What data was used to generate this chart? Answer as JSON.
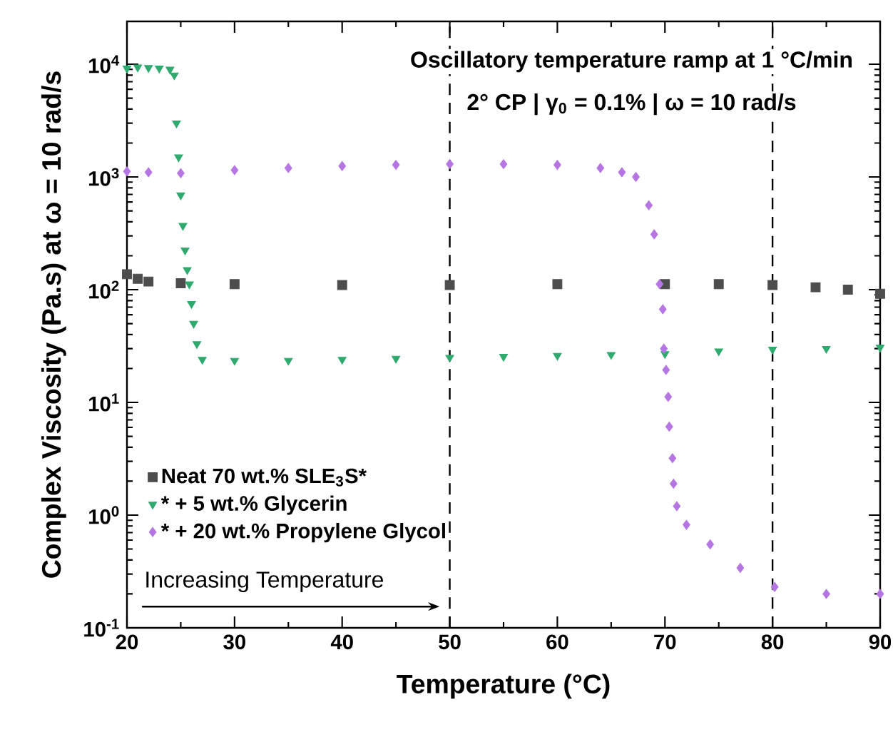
{
  "chart_data": {
    "type": "scatter",
    "xlabel": "Temperature (°C)",
    "ylabel": "Complex Viscosity (Pa.s) at ω = 10 rad/s",
    "xlim": [
      20,
      90
    ],
    "xticks": [
      20,
      30,
      40,
      50,
      60,
      70,
      80,
      90
    ],
    "ylim": [
      0.1,
      24000
    ],
    "log": "y",
    "yticks": [
      {
        "value": 0.1,
        "label": "10$^{-1}$"
      },
      {
        "value": 1,
        "label": "10$^{0}$"
      },
      {
        "value": 10,
        "label": "10$^{1}$"
      },
      {
        "value": 100,
        "label": "10$^{2}$"
      },
      {
        "value": 1000,
        "label": "10$^{3}$"
      },
      {
        "value": 10000,
        "label": "10$^{4}$"
      }
    ],
    "legend": "bottom left",
    "series": [
      {
        "name": "Neat 70 wt.% SLE$_{3}$S*",
        "color": "#4d4d4d",
        "marker": "square",
        "x": [
          20,
          21,
          22,
          25,
          30,
          40,
          50,
          60,
          70,
          75,
          80,
          84,
          87,
          90
        ],
        "values": [
          137,
          125,
          118,
          114,
          112,
          110,
          110,
          112,
          112,
          112,
          110,
          105,
          100,
          92
        ]
      },
      {
        "name": "* + 5 wt.% Glycerin",
        "color": "#2eaa6e",
        "marker": "triangle",
        "x": [
          20,
          21,
          22,
          23,
          24,
          24.4,
          24.6,
          24.8,
          25,
          25.2,
          25.4,
          25.6,
          25.8,
          26,
          26.2,
          26.5,
          27,
          30,
          35,
          40,
          45,
          50,
          55,
          60,
          65,
          70,
          75,
          80,
          85,
          90
        ],
        "values": [
          9200,
          9400,
          9300,
          9200,
          9000,
          8000,
          3000,
          1500,
          690,
          370,
          224,
          150,
          112,
          75,
          50,
          33,
          24,
          23.5,
          23.5,
          24,
          24.5,
          25,
          25.5,
          26,
          26.5,
          27,
          28.5,
          29.5,
          30,
          30.7
        ]
      },
      {
        "name": "* + 20 wt.% Propylene Glycol",
        "color": "#b576e3",
        "marker": "diamond",
        "x": [
          20,
          22,
          25,
          30,
          35,
          40,
          45,
          50,
          55,
          60,
          64,
          66,
          67.3,
          68.5,
          69,
          69.5,
          69.8,
          69.9,
          70.1,
          70.3,
          70.4,
          70.7,
          70.8,
          71.1,
          72,
          74.2,
          77,
          80.2,
          85,
          90
        ],
        "values": [
          1120,
          1100,
          1080,
          1150,
          1200,
          1250,
          1280,
          1300,
          1300,
          1280,
          1200,
          1100,
          1000,
          560,
          310,
          112,
          67,
          30,
          19.4,
          11.2,
          6.1,
          3.2,
          1.9,
          1.2,
          0.82,
          0.55,
          0.34,
          0.23,
          0.2,
          0.2
        ]
      }
    ],
    "ref_lines": [
      {
        "axis": "x",
        "value": 50,
        "color": "#000000",
        "line_style": "dashed"
      },
      {
        "axis": "x",
        "value": 80,
        "color": "#000000",
        "line_style": "dashed"
      }
    ],
    "annotations": [
      "Oscillatory temperature ramp at 1 °C/min",
      "2° CP | γ$_{0}$ = 0.1% | ω = 10 rad/s",
      "Increasing Temperature"
    ]
  }
}
